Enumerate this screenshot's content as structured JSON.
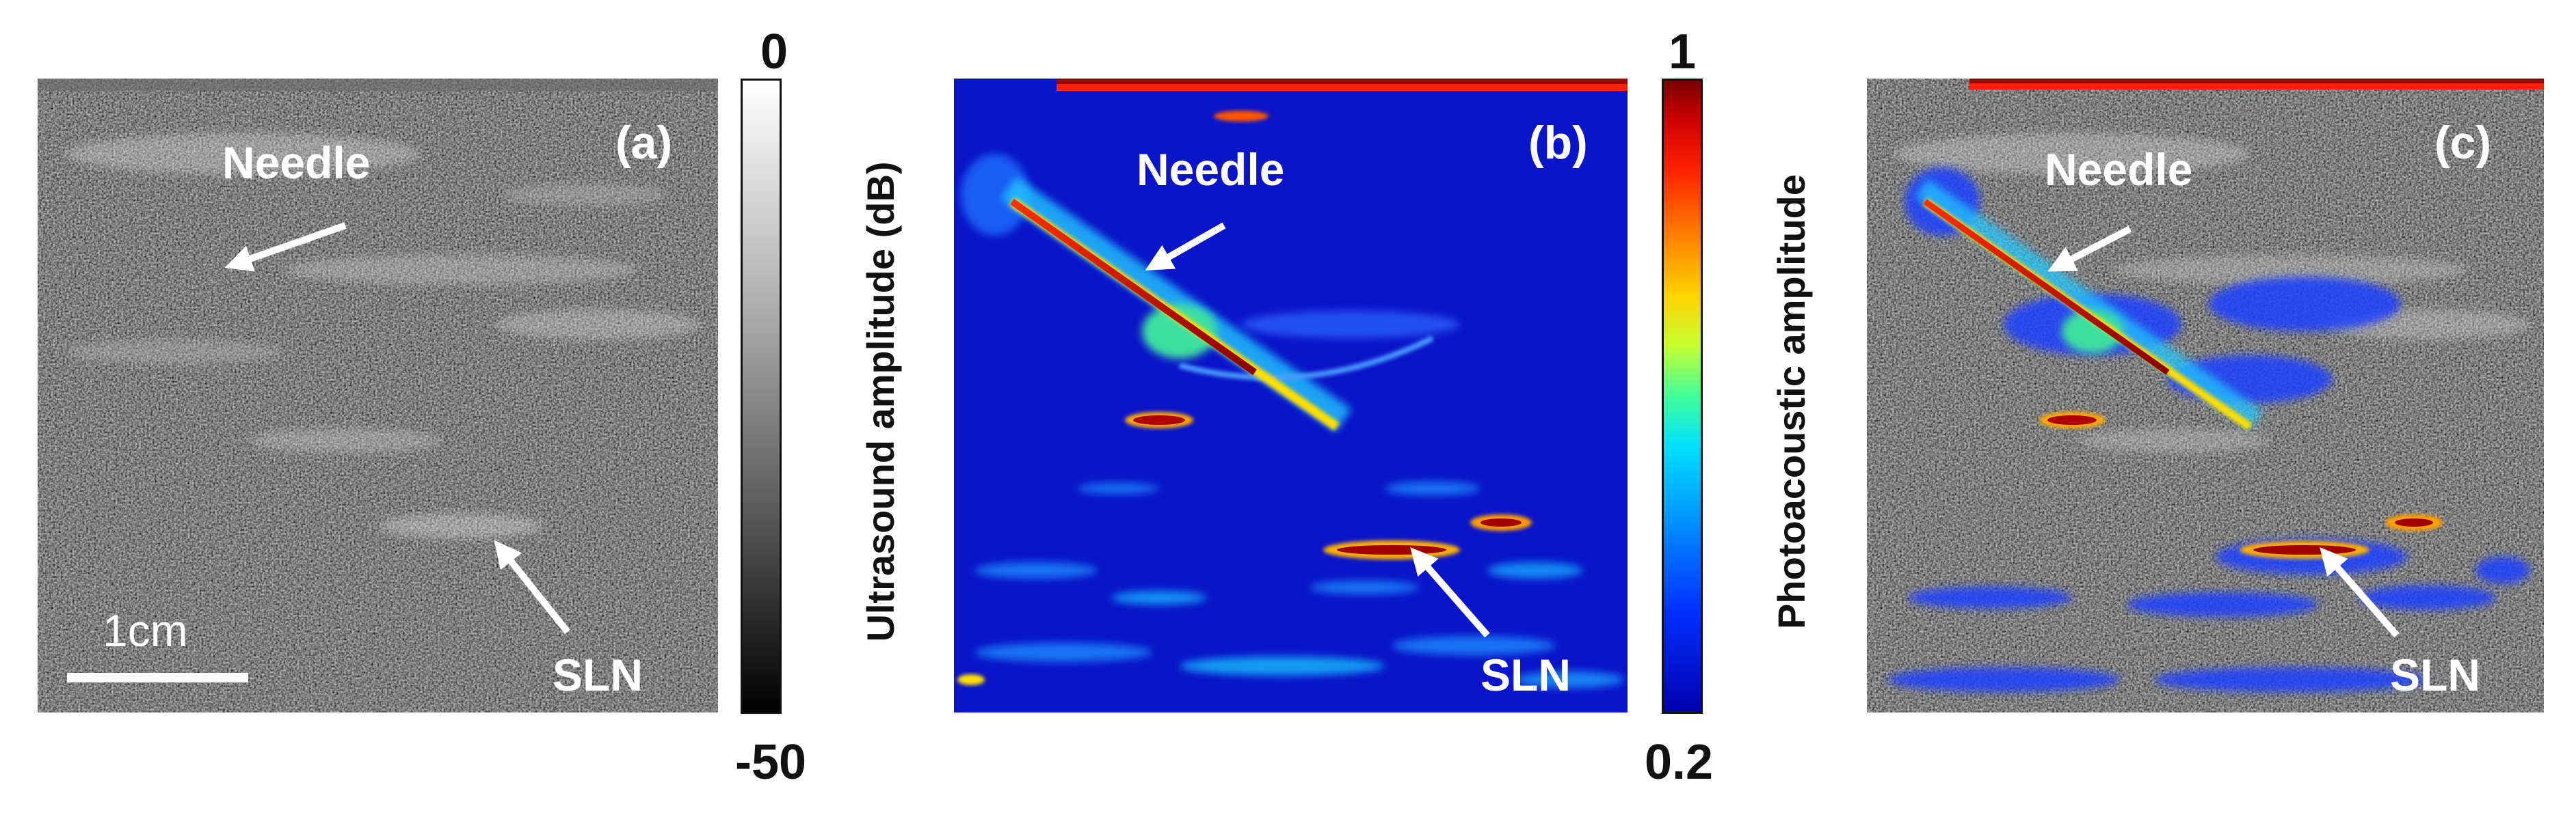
{
  "panels": {
    "a": {
      "tag": "(a)",
      "needle": "Needle",
      "sln": "SLN",
      "scale": "1cm"
    },
    "b": {
      "tag": "(b)",
      "needle": "Needle",
      "sln": "SLN"
    },
    "c": {
      "tag": "(c)",
      "needle": "Needle",
      "sln": "SLN"
    }
  },
  "colorbars": {
    "ultrasound": {
      "title": "Ultrasound amplitude (dB)",
      "max": "0",
      "min": "-50"
    },
    "photoacoustic": {
      "title": "Photoacoustic amplitude",
      "max": "1",
      "min": "0.2"
    }
  },
  "colors": {
    "arrow": "#ffffff",
    "pa_background": "#0a14c8",
    "pa_signal": "#b00000"
  }
}
